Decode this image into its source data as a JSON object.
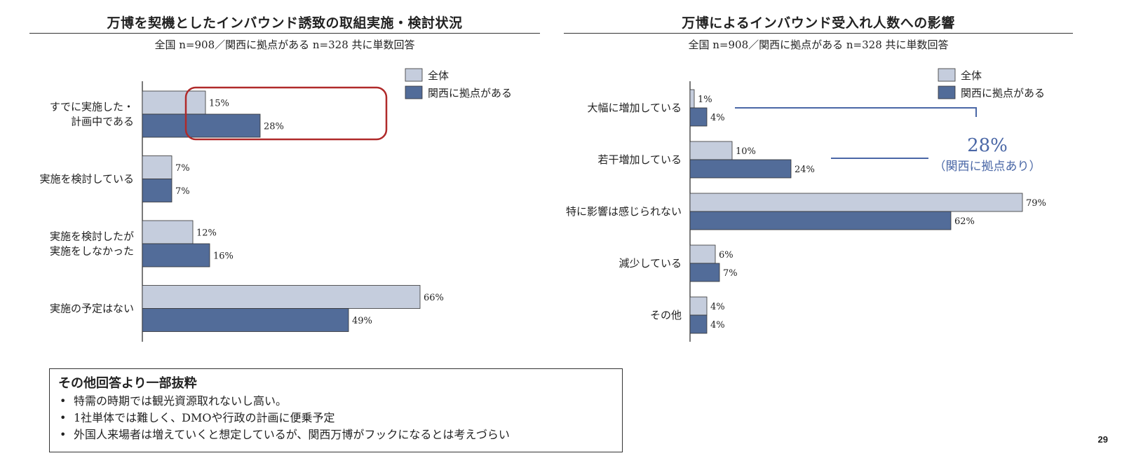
{
  "page_number": "29",
  "colors": {
    "overall": "#c5cddd",
    "kansai": "#526c99",
    "highlight": "#b02a2a",
    "callout": "#4a67a6"
  },
  "chart_data": [
    {
      "type": "bar",
      "orientation": "horizontal",
      "title": "万博を契機としたインバウンド誘致の取組実施・検討状況",
      "subtitle": "全国 n=908／関西に拠点がある n=328 共に単数回答",
      "unit": "%",
      "xlim": [
        0,
        100
      ],
      "legend": [
        "全体",
        "関西に拠点がある"
      ],
      "legend_position": "top-right",
      "categories": [
        [
          "すでに実施した・",
          "計画中である"
        ],
        [
          "実施を検討している"
        ],
        [
          "実施を検討したが",
          "実施をしなかった"
        ],
        [
          "実施の予定はない"
        ]
      ],
      "series": [
        {
          "name": "全体",
          "values": [
            15,
            7,
            12,
            66
          ]
        },
        {
          "name": "関西に拠点がある",
          "values": [
            28,
            7,
            16,
            49
          ]
        }
      ],
      "highlight_category": 0
    },
    {
      "type": "bar",
      "orientation": "horizontal",
      "title": "万博によるインバウンド受入れ人数への影響",
      "subtitle": "全国 n=908／関西に拠点がある n=328 共に単数回答",
      "unit": "%",
      "xlim": [
        0,
        100
      ],
      "legend": [
        "全体",
        "関西に拠点がある"
      ],
      "legend_position": "top-right",
      "categories": [
        [
          "大幅に増加している"
        ],
        [
          "若干増加している"
        ],
        [
          "特に影響は感じられない"
        ],
        [
          "減少している"
        ],
        [
          "その他"
        ]
      ],
      "series": [
        {
          "name": "全体",
          "values": [
            1,
            10,
            79,
            6,
            4
          ]
        },
        {
          "name": "関西に拠点がある",
          "values": [
            4,
            24,
            62,
            7,
            4
          ]
        }
      ],
      "callout": {
        "value_text": "28%",
        "label": "（関西に拠点あり）"
      }
    }
  ],
  "note": {
    "title": "その他回答より一部抜粋",
    "items": [
      "特需の時期では観光資源取れないし高い。",
      "1社単体では難しく、DMOや行政の計画に便乗予定",
      "外国人来場者は増えていくと想定しているが、関西万博がフックになるとは考えづらい"
    ]
  }
}
